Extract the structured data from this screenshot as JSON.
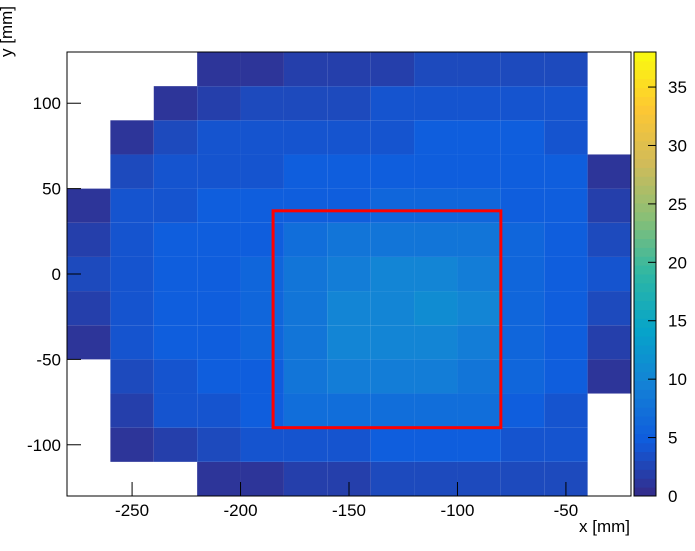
{
  "chart_data": {
    "type": "heatmap",
    "xlabel": "x [mm]",
    "ylabel": "y [mm]",
    "xlim": [
      -280,
      -20
    ],
    "ylim": [
      -130,
      130
    ],
    "xticks": [
      -250,
      -200,
      -150,
      -100,
      -50
    ],
    "yticks": [
      -100,
      -50,
      0,
      50,
      100
    ],
    "zlim": [
      0,
      38
    ],
    "zticks": [
      0,
      5,
      10,
      15,
      20,
      25,
      30,
      35
    ],
    "colorscale": [
      "#352a87",
      "#0f5cdd",
      "#1481d6",
      "#06a4ca",
      "#2eb7a4",
      "#87bf77",
      "#d1bb59",
      "#fec832",
      "#f9fb0e"
    ],
    "xbins": [
      -280,
      -260,
      -240,
      -220,
      -200,
      -180,
      -160,
      -140,
      -120,
      -100,
      -80,
      -60,
      -40,
      -20
    ],
    "ybins": [
      -130,
      -110,
      -90,
      -70,
      -50,
      -30,
      -10,
      10,
      30,
      50,
      70,
      90,
      110,
      130
    ],
    "z": [
      [
        0,
        0,
        0,
        1,
        1,
        2,
        2,
        3,
        3,
        3,
        3,
        3,
        0
      ],
      [
        0,
        1,
        2,
        3,
        4,
        4,
        4,
        5,
        5,
        5,
        4,
        4,
        0
      ],
      [
        0,
        2,
        4,
        4,
        5,
        7,
        7,
        7,
        7,
        7,
        5,
        4,
        0
      ],
      [
        0,
        3,
        4,
        5,
        5,
        8,
        9,
        9,
        9,
        8,
        6,
        5,
        1
      ],
      [
        1,
        4,
        5,
        5,
        6,
        8,
        10,
        10,
        10,
        9,
        6,
        5,
        2
      ],
      [
        2,
        4,
        5,
        5,
        6,
        8,
        10,
        10,
        11,
        10,
        6,
        5,
        3
      ],
      [
        3,
        4,
        5,
        5,
        6,
        8,
        9,
        10,
        10,
        9,
        6,
        5,
        4
      ],
      [
        2,
        4,
        5,
        5,
        5,
        7,
        8,
        8,
        8,
        8,
        6,
        5,
        3
      ],
      [
        1,
        4,
        4,
        5,
        5,
        5,
        5,
        6,
        6,
        6,
        5,
        5,
        2
      ],
      [
        0,
        3,
        4,
        4,
        4,
        5,
        5,
        5,
        5,
        5,
        5,
        5,
        1
      ],
      [
        0,
        1,
        3,
        4,
        4,
        4,
        4,
        4,
        5,
        5,
        5,
        4,
        0
      ],
      [
        0,
        0,
        1,
        2,
        3,
        3,
        3,
        4,
        4,
        4,
        4,
        4,
        0
      ],
      [
        0,
        0,
        0,
        1,
        1,
        2,
        2,
        2,
        3,
        3,
        3,
        3,
        0
      ]
    ],
    "box": {
      "x": [
        -185,
        -80
      ],
      "y": [
        -90,
        37
      ],
      "color": "#ff0000"
    }
  }
}
